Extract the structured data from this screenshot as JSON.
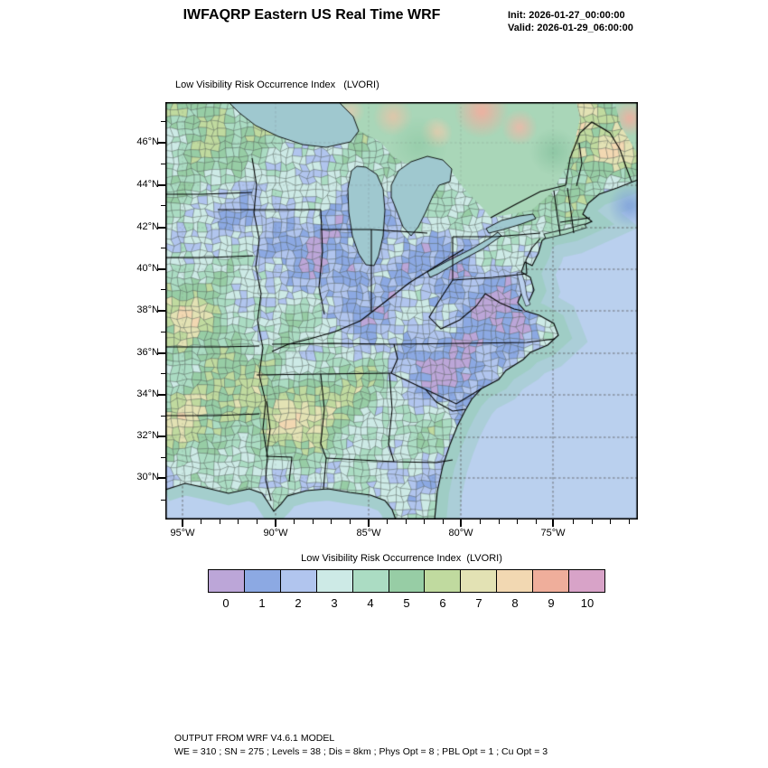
{
  "header": {
    "title": "IWFAQRP Eastern US Real Time WRF",
    "init_label": "Init: 2026-01-27_00:00:00",
    "valid_label": "Valid: 2026-01-29_06:00:00"
  },
  "map": {
    "title": "Low Visibility Risk Occurrence Index   (LVORI)",
    "lat_labels": [
      "46°N",
      "44°N",
      "42°N",
      "40°N",
      "38°N",
      "36°N",
      "34°N",
      "32°N",
      "30°N"
    ],
    "lon_labels": [
      "95°W",
      "90°W",
      "85°W",
      "80°W",
      "75°W"
    ],
    "ocean_color": "#bad0ee",
    "lake_color": "#9fc8cf"
  },
  "colorbar": {
    "label": "Low Visibility Risk Occurrence Index  (LVORI)",
    "ticks": [
      "0",
      "1",
      "2",
      "3",
      "4",
      "5",
      "6",
      "7",
      "8",
      "9",
      "10"
    ],
    "colors": [
      "#bca6d8",
      "#8ca9e3",
      "#b1c5ee",
      "#cdeae6",
      "#abdcc3",
      "#97cda5",
      "#c0da9f",
      "#e3e2b4",
      "#f2d8b2",
      "#efae9b",
      "#d8a3c8"
    ]
  },
  "footer": {
    "line1": "OUTPUT FROM WRF V4.6.1 MODEL",
    "line2": "WE = 310 ; SN = 275 ; Levels = 38 ; Dis = 8km ; Phys Opt = 8 ; PBL Opt = 1 ; Cu Opt = 3"
  }
}
